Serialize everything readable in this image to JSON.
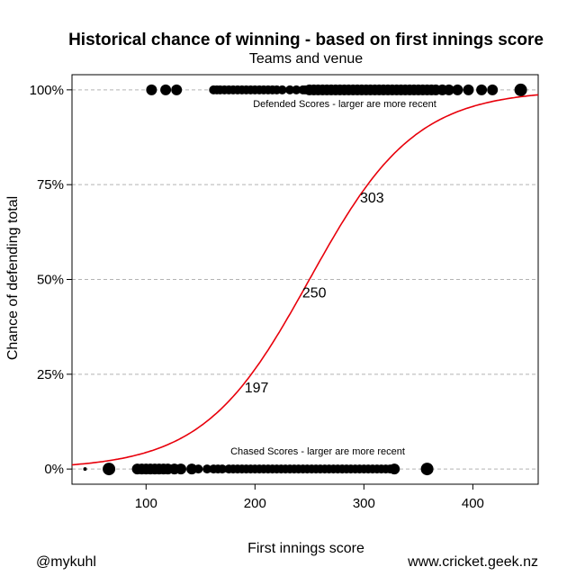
{
  "chart_data": {
    "type": "scatter",
    "title": "Historical chance of winning - based on first innings score",
    "subtitle": "Teams and venue",
    "xlabel": "First innings score",
    "ylabel": "Chance of defending total",
    "xlim": [
      32,
      460
    ],
    "ylim": [
      -0.04,
      1.04
    ],
    "x_ticks": [
      100,
      200,
      300,
      400
    ],
    "y_ticks": [
      0,
      0.25,
      0.5,
      0.75,
      1
    ],
    "y_tick_labels": [
      "0%",
      "25%",
      "50%",
      "75%",
      "100%"
    ],
    "grid": "horizontal dashed at y ticks",
    "curve": {
      "type": "logistic",
      "color": "#e8000b",
      "midpoint": 250,
      "scale": 48.6,
      "labeled_points": [
        {
          "x": 197,
          "y": 0.25,
          "label": "197"
        },
        {
          "x": 250,
          "y": 0.5,
          "label": "250"
        },
        {
          "x": 303,
          "y": 0.75,
          "label": "303"
        }
      ]
    },
    "annotations": {
      "defended": "Defended Scores - larger are more recent",
      "chased": "Chased Scores - larger are more recent"
    },
    "series": [
      {
        "name": "Defended Scores",
        "y": 1,
        "x": [
          105,
          118,
          128,
          162,
          165,
          168,
          172,
          176,
          180,
          184,
          188,
          192,
          196,
          200,
          204,
          208,
          212,
          216,
          220,
          225,
          232,
          238,
          244,
          246,
          250,
          254,
          258,
          262,
          266,
          270,
          274,
          278,
          282,
          286,
          290,
          294,
          298,
          302,
          306,
          310,
          314,
          318,
          322,
          326,
          330,
          334,
          338,
          342,
          346,
          350,
          354,
          358,
          362,
          366,
          372,
          378,
          386,
          396,
          408,
          418,
          444
        ],
        "r": [
          6,
          6,
          6,
          5,
          5,
          5,
          5,
          5,
          5,
          5,
          5,
          5,
          5,
          5,
          5,
          5,
          5,
          5,
          5,
          5,
          5,
          5,
          5,
          5,
          6,
          6,
          6,
          6,
          6,
          6,
          6,
          6,
          6,
          6,
          6,
          6,
          6,
          6,
          6,
          6,
          6,
          6,
          6,
          6,
          6,
          6,
          6,
          6,
          6,
          6,
          6,
          6,
          6,
          6,
          6,
          6,
          6,
          6,
          6,
          6,
          7
        ]
      },
      {
        "name": "Chased Scores",
        "y": 0,
        "x": [
          44,
          66,
          92,
          96,
          100,
          104,
          108,
          112,
          116,
          120,
          126,
          132,
          142,
          148,
          156,
          162,
          166,
          170,
          176,
          180,
          184,
          188,
          192,
          196,
          200,
          204,
          208,
          212,
          216,
          220,
          224,
          228,
          232,
          236,
          240,
          244,
          248,
          252,
          256,
          260,
          264,
          268,
          272,
          276,
          280,
          284,
          288,
          292,
          296,
          300,
          304,
          308,
          312,
          316,
          320,
          324,
          328,
          358
        ],
        "r": [
          2,
          7,
          6,
          6,
          6,
          6,
          6,
          6,
          6,
          6,
          6,
          6,
          6,
          5,
          5,
          5,
          5,
          5,
          5,
          5,
          5,
          5,
          5,
          5,
          5,
          5,
          5,
          5,
          5,
          5,
          5,
          5,
          5,
          5,
          5,
          5,
          5,
          5,
          5,
          5,
          5,
          5,
          5,
          5,
          5,
          5,
          5,
          5,
          5,
          5,
          5,
          5,
          5,
          5,
          5,
          5,
          6,
          7
        ]
      }
    ]
  },
  "footer": {
    "left": "@mykuhl",
    "right": "www.cricket.geek.nz"
  },
  "colors": {
    "curve": "#e8000b",
    "points": "#000000",
    "grid": "#b3b3b3"
  }
}
